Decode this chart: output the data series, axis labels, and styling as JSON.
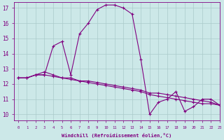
{
  "xlabel": "Windchill (Refroidissement éolien,°C)",
  "bg_color": "#cce8e8",
  "line_color": "#800080",
  "grid_color": "#aacaca",
  "x_hours": [
    0,
    1,
    2,
    3,
    4,
    5,
    6,
    7,
    8,
    9,
    10,
    11,
    12,
    13,
    14,
    15,
    16,
    17,
    18,
    19,
    20,
    21,
    22,
    23
  ],
  "temp": [
    12.4,
    12.4,
    12.6,
    12.6,
    14.5,
    14.8,
    12.6,
    15.3,
    16.0,
    16.9,
    17.2,
    17.2,
    17.0,
    16.6,
    13.6,
    10.0,
    10.8,
    11.0,
    11.5,
    10.2,
    10.5,
    11.0,
    11.0,
    10.6
  ],
  "windchill": [
    12.4,
    12.4,
    12.6,
    12.8,
    12.6,
    12.4,
    12.4,
    12.2,
    12.2,
    12.1,
    12.0,
    11.9,
    11.8,
    11.7,
    11.6,
    11.4,
    11.4,
    11.3,
    11.2,
    11.1,
    11.0,
    10.9,
    10.8,
    10.6
  ],
  "apparent": [
    12.4,
    12.4,
    12.6,
    12.6,
    12.5,
    12.4,
    12.3,
    12.2,
    12.1,
    12.0,
    11.9,
    11.8,
    11.7,
    11.6,
    11.5,
    11.3,
    11.2,
    11.1,
    11.0,
    10.9,
    10.8,
    10.7,
    10.7,
    10.6
  ],
  "ylim": [
    9.6,
    17.4
  ],
  "xlim": [
    -0.5,
    23
  ],
  "yticks": [
    10,
    11,
    12,
    13,
    14,
    15,
    16,
    17
  ]
}
